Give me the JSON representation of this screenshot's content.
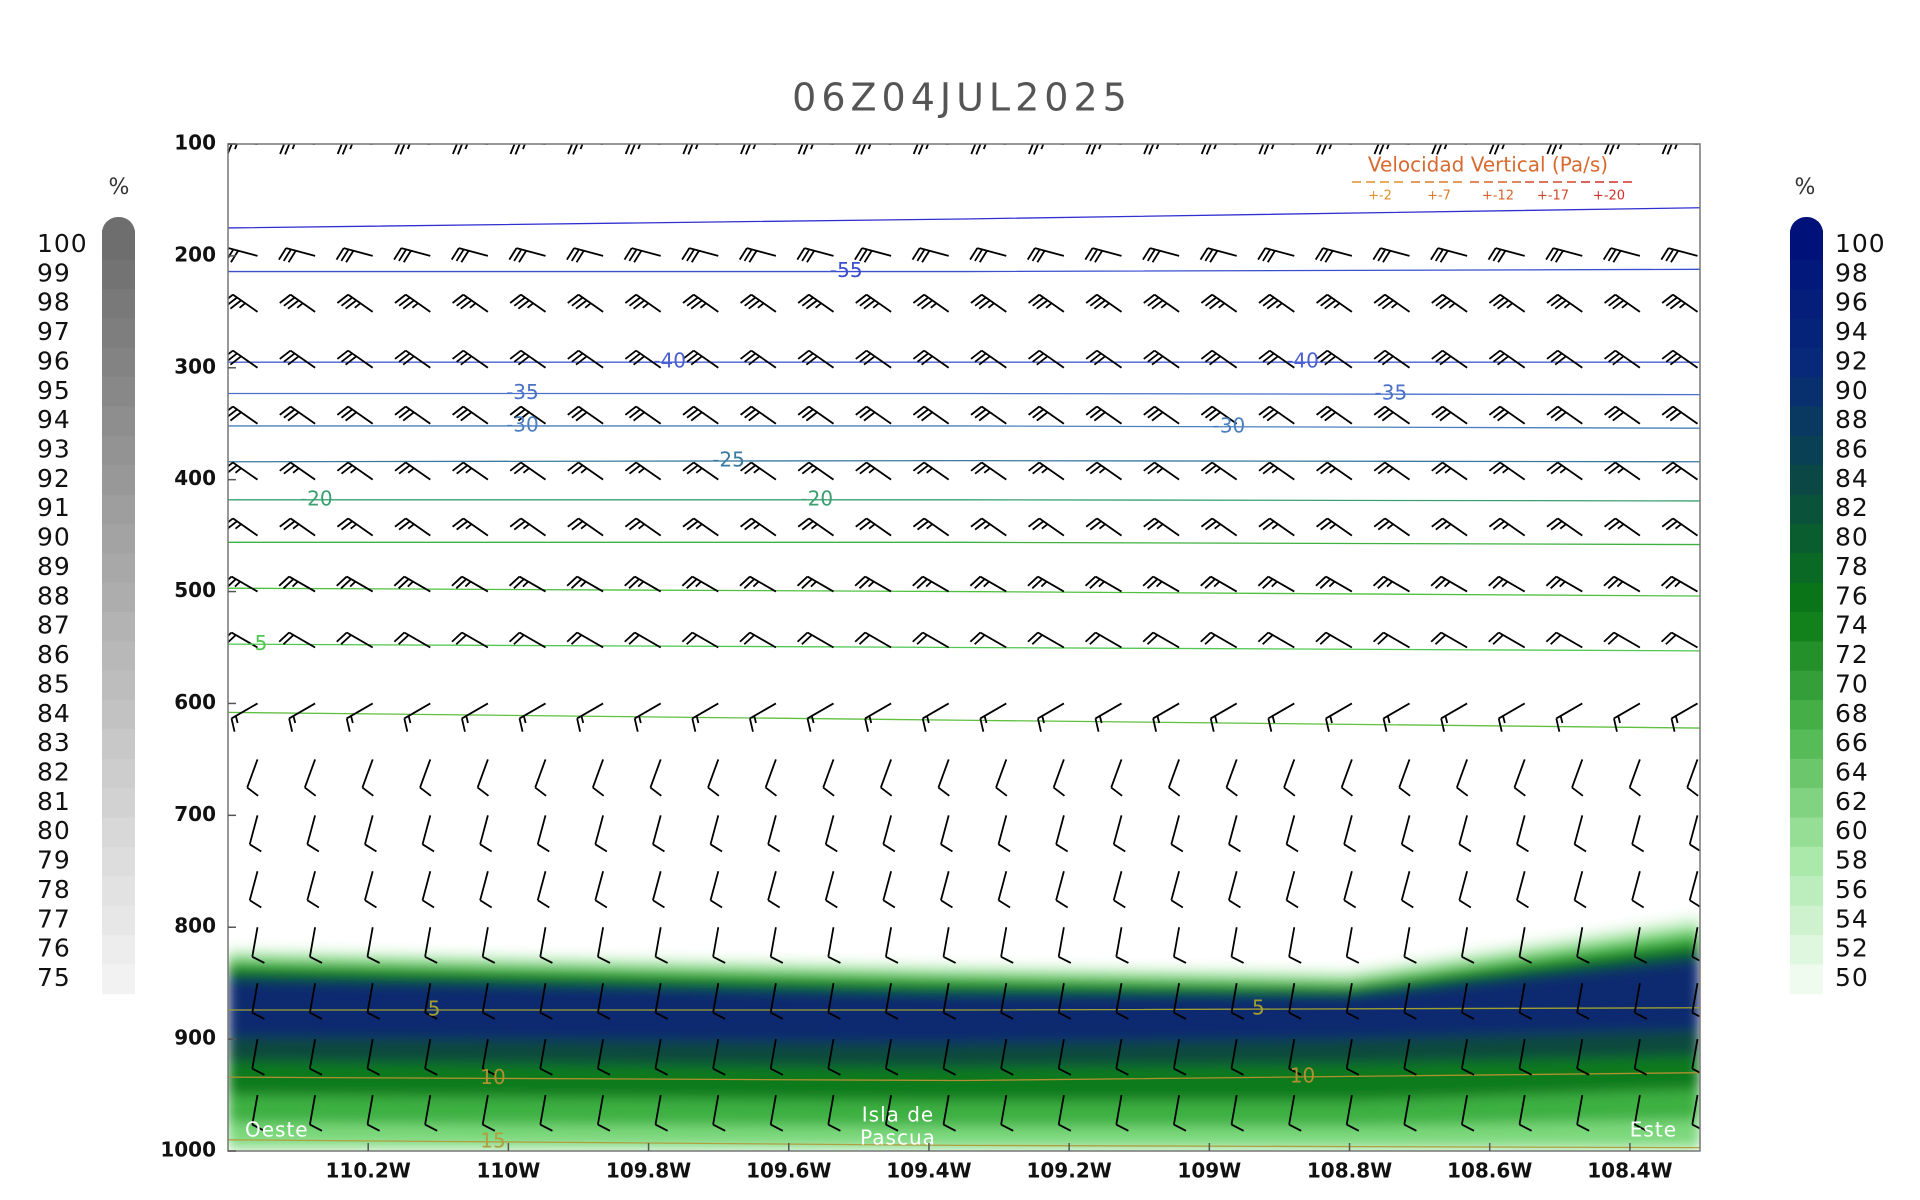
{
  "chart_data": {
    "type": "cross-section",
    "title": "06Z04JUL2025",
    "xlim": [
      -110.4,
      -108.3
    ],
    "xticks": [
      {
        "value": -110.2,
        "label": "110.2W"
      },
      {
        "value": -110.0,
        "label": "110W"
      },
      {
        "value": -109.8,
        "label": "109.8W"
      },
      {
        "value": -109.6,
        "label": "109.6W"
      },
      {
        "value": -109.4,
        "label": "109.4W"
      },
      {
        "value": -109.2,
        "label": "109.2W"
      },
      {
        "value": -109.0,
        "label": "109W"
      },
      {
        "value": -108.8,
        "label": "108.8W"
      },
      {
        "value": -108.6,
        "label": "108.6W"
      },
      {
        "value": -108.4,
        "label": "108.4W"
      }
    ],
    "ylim": [
      1000,
      100
    ],
    "yticks": [
      100,
      200,
      300,
      400,
      500,
      600,
      700,
      800,
      900,
      1000
    ],
    "rh_field": {
      "x": [
        -110.4,
        -109.4,
        -108.8,
        -108.3
      ],
      "bands": [
        {
          "color": "#e6f8e6",
          "top": [
            818,
            832,
            838,
            788
          ],
          "bottom": [
            1000,
            1000,
            1000,
            1000
          ]
        },
        {
          "color": "#b8ecb8",
          "top": [
            822,
            836,
            842,
            794
          ],
          "bottom": [
            1000,
            1000,
            1000,
            1000
          ]
        },
        {
          "color": "#7cd87c",
          "top": [
            826,
            840,
            846,
            800
          ],
          "bottom": [
            995,
            996,
            996,
            995
          ]
        },
        {
          "color": "#3cb043",
          "top": [
            830,
            844,
            850,
            806
          ],
          "bottom": [
            975,
            978,
            978,
            972
          ]
        },
        {
          "color": "#0b7a1e",
          "top": [
            836,
            850,
            854,
            814
          ],
          "bottom": [
            950,
            955,
            955,
            945
          ]
        },
        {
          "color": "#0d4a3c",
          "top": [
            842,
            856,
            858,
            822
          ],
          "bottom": [
            920,
            925,
            922,
            915
          ]
        },
        {
          "color": "#0a2a70",
          "top": [
            848,
            860,
            862,
            830
          ],
          "bottom": [
            898,
            904,
            900,
            892
          ]
        }
      ]
    },
    "contours": [
      {
        "color": "#3030d0",
        "x": [
          -110.4,
          -109.35,
          -108.3
        ],
        "y": [
          175,
          167,
          157
        ]
      },
      {
        "level": -55,
        "color": "#3a4ed0",
        "x": [
          -110.4,
          -109.35,
          -108.3
        ],
        "y": [
          214,
          214,
          212
        ]
      },
      {
        "level": -40,
        "color": "#4a60d0",
        "x": [
          -110.4,
          -109.35,
          -108.3
        ],
        "y": [
          295,
          295,
          295
        ]
      },
      {
        "level": -35,
        "color": "#4a70c8",
        "x": [
          -110.4,
          -109.35,
          -108.3
        ],
        "y": [
          323,
          323,
          324
        ]
      },
      {
        "level": -30,
        "color": "#4a80c0",
        "x": [
          -110.4,
          -109.35,
          -108.3
        ],
        "y": [
          352,
          352,
          354
        ]
      },
      {
        "level": -25,
        "color": "#3a7aa0",
        "x": [
          -110.4,
          -109.35,
          -108.3
        ],
        "y": [
          384,
          383,
          384
        ]
      },
      {
        "level": -20,
        "color": "#3aa070",
        "x": [
          -110.4,
          -109.35,
          -108.3
        ],
        "y": [
          418,
          418,
          419
        ]
      },
      {
        "color": "#40b040",
        "x": [
          -110.4,
          -109.35,
          -108.3
        ],
        "y": [
          456,
          456,
          458
        ]
      },
      {
        "color": "#50c040",
        "x": [
          -110.4,
          -109.35,
          -108.3
        ],
        "y": [
          497,
          500,
          504
        ]
      },
      {
        "level": -5,
        "color": "#50c850",
        "x": [
          -110.4,
          -109.35,
          -108.3
        ],
        "y": [
          547,
          550,
          553
        ]
      },
      {
        "color": "#60c040",
        "x": [
          -110.4,
          -109.35,
          -108.3
        ],
        "y": [
          608,
          615,
          622
        ]
      },
      {
        "level": 5,
        "color": "#a0a030",
        "x": [
          -110.4,
          -109.35,
          -108.3
        ],
        "y": [
          874,
          874,
          872
        ]
      },
      {
        "level": 10,
        "color": "#b09030",
        "x": [
          -110.4,
          -109.35,
          -108.3
        ],
        "y": [
          934,
          937,
          930
        ]
      },
      {
        "level": 15,
        "color": "#b0a040",
        "x": [
          -110.4,
          -109.35,
          -108.3
        ],
        "y": [
          990,
          995,
          997
        ]
      }
    ],
    "wind_barbs": {
      "levels": [
        100,
        200,
        250,
        300,
        350,
        400,
        450,
        500,
        550,
        600,
        650,
        700,
        750,
        800,
        850,
        900,
        950
      ],
      "direction": [
        275,
        285,
        305,
        305,
        305,
        305,
        305,
        300,
        300,
        240,
        200,
        195,
        195,
        190,
        190,
        190,
        190
      ],
      "speed": [
        25,
        30,
        35,
        30,
        30,
        25,
        25,
        25,
        20,
        15,
        10,
        10,
        10,
        10,
        10,
        10,
        10
      ]
    },
    "legend": {
      "title": "Velocidad Vertical  (Pa/s)",
      "items": [
        {
          "label": "+-2",
          "color": "#e0902a"
        },
        {
          "label": "+-7",
          "color": "#dc7a2a"
        },
        {
          "label": "+-12",
          "color": "#d8602a"
        },
        {
          "label": "+-17",
          "color": "#d4482a"
        },
        {
          "label": "+-20",
          "color": "#d0302a"
        }
      ]
    },
    "annotations": [
      "Oeste",
      "Isla de",
      "Pascua",
      "Este"
    ],
    "colorbars": [
      {
        "unit": "%",
        "ticks": [
          100,
          99,
          98,
          97,
          96,
          95,
          94,
          93,
          92,
          91,
          90,
          89,
          88,
          87,
          86,
          85,
          84,
          83,
          82,
          81,
          80,
          79,
          78,
          77,
          76,
          75
        ],
        "colors": [
          "#f2f2f2",
          "#6e6e6e"
        ]
      },
      {
        "unit": "%",
        "ticks": [
          100,
          98,
          96,
          94,
          92,
          90,
          88,
          86,
          84,
          82,
          80,
          78,
          76,
          74,
          72,
          70,
          68,
          66,
          64,
          62,
          60,
          58,
          56,
          54,
          52,
          50
        ],
        "colors": [
          "#f0fbf0",
          "#a8e8a8",
          "#50b850",
          "#0a7a14",
          "#0a4a40",
          "#082a7a",
          "#00127a"
        ]
      }
    ]
  }
}
